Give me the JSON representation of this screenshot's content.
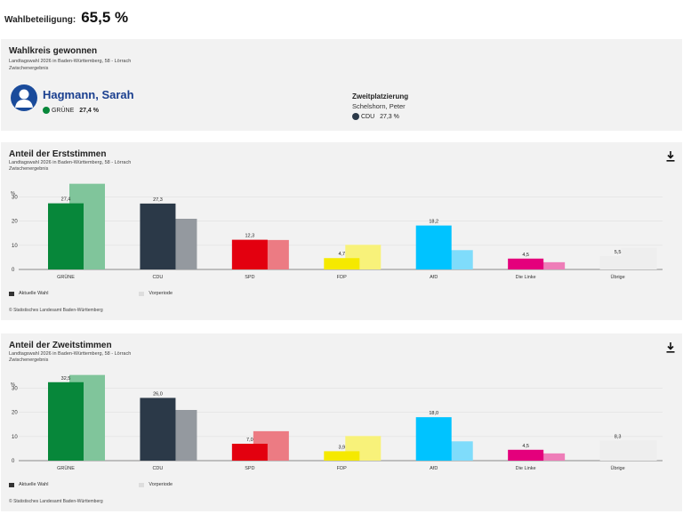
{
  "turnout": {
    "label": "Wahlbeteiligung:",
    "value": "65,5 %"
  },
  "winner": {
    "title": "Wahlkreis gewonnen",
    "subtitle": "Landtagswahl 2026 in Baden-Württemberg, 58 - Lörrach",
    "status": "Zwischenergebnis",
    "name": "Hagmann, Sarah",
    "party": "GRÜNE",
    "party_value": "27,4 %",
    "party_color": "#07873a",
    "avatar_color": "#1a4b9b",
    "second": {
      "label": "Zweitplatzierung",
      "name": "Schelshorn, Peter",
      "party": "CDU",
      "party_value": "27,3 %",
      "party_color": "#2b3948"
    }
  },
  "charts": [
    {
      "title": "Anteil der Erststimmen",
      "subtitle": "Landtagswahl 2026 in Baden-Württemberg, 58 - Lörrach",
      "status": "Zwischenergebnis",
      "legend_current": "Aktuelle Wahl",
      "legend_previous": "Vorperiode",
      "source": "© Statistisches Landesamt Baden-Württemberg"
    },
    {
      "title": "Anteil der Zweitstimmen",
      "subtitle": "Landtagswahl 2026 in Baden-Württemberg, 58 - Lörrach",
      "status": "Zwischenergebnis",
      "legend_current": "Aktuelle Wahl",
      "legend_previous": "Vorperiode",
      "source": "© Statistisches Landesamt Baden-Württemberg"
    }
  ],
  "chart_data": [
    {
      "type": "bar",
      "title": "Anteil der Erststimmen",
      "ylabel": "%",
      "ylim": [
        0,
        35
      ],
      "yticks": [
        0,
        10,
        20,
        30
      ],
      "categories": [
        "GRÜNE",
        "CDU",
        "SPD",
        "FDP",
        "AfD",
        "Die Linke",
        "Übrige"
      ],
      "colors_current": [
        "#07873a",
        "#2b3948",
        "#e3000f",
        "#f5e900",
        "#00c3ff",
        "#e4007c",
        "#eeeeee"
      ],
      "colors_previous": [
        "#80c59b",
        "#94999f",
        "#ec7b83",
        "#f8f27a",
        "#7fdcfb",
        "#ee7db8",
        "#eeeeee"
      ],
      "series": [
        {
          "name": "Aktuelle Wahl",
          "values": [
            27.4,
            27.3,
            12.3,
            4.7,
            18.2,
            4.5,
            5.5
          ],
          "labels": [
            "27,4",
            "27,3",
            "12,3",
            "4,7",
            "18,2",
            "4,5",
            "5,5"
          ]
        },
        {
          "name": "Vorperiode",
          "values": [
            35.5,
            21.0,
            12.2,
            10.2,
            8.0,
            3.0,
            9.0
          ]
        }
      ]
    },
    {
      "type": "bar",
      "title": "Anteil der Zweitstimmen",
      "ylabel": "%",
      "ylim": [
        0,
        35
      ],
      "yticks": [
        0,
        10,
        20,
        30
      ],
      "categories": [
        "GRÜNE",
        "CDU",
        "SPD",
        "FDP",
        "AfD",
        "Die Linke",
        "Übrige"
      ],
      "colors_current": [
        "#07873a",
        "#2b3948",
        "#e3000f",
        "#f5e900",
        "#00c3ff",
        "#e4007c",
        "#eeeeee"
      ],
      "colors_previous": [
        "#80c59b",
        "#94999f",
        "#ec7b83",
        "#f8f27a",
        "#7fdcfb",
        "#ee7db8",
        "#eeeeee"
      ],
      "series": [
        {
          "name": "Aktuelle Wahl",
          "values": [
            32.5,
            26.0,
            7.0,
            3.9,
            18.0,
            4.5,
            8.3
          ],
          "labels": [
            "32,5",
            "26,0",
            "7,0",
            "3,9",
            "18,0",
            "4,5",
            "8,3"
          ]
        },
        {
          "name": "Vorperiode",
          "values": [
            35.5,
            21.0,
            12.2,
            10.2,
            8.0,
            3.0,
            8.4
          ]
        }
      ]
    }
  ]
}
